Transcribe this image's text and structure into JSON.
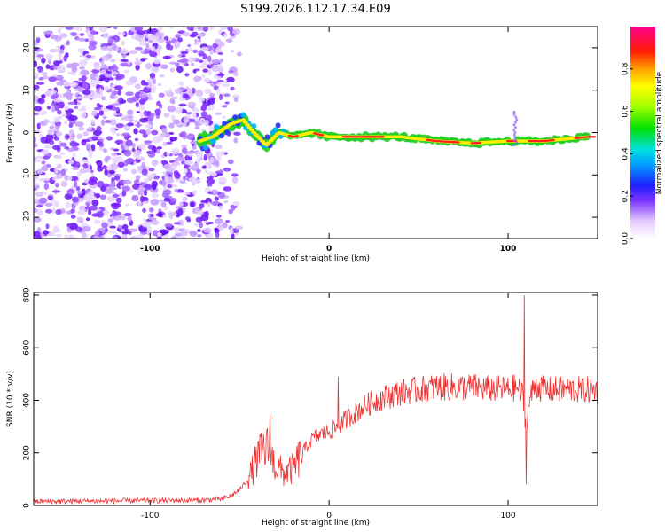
{
  "title": "S199.2026.112.17.34.E09",
  "colors": {
    "snr_line": "#ee3333",
    "frame": "#000000"
  },
  "chart_data": [
    {
      "type": "heatmap",
      "name": "spectrogram",
      "xlabel": "Height of straight line (km)",
      "ylabel": "Frequency (Hz)",
      "xlim": [
        -165,
        150
      ],
      "ylim": [
        -25,
        25
      ],
      "x_ticks": [
        -100,
        0,
        100
      ],
      "x_tick_labels": [
        "-100",
        "0",
        "100"
      ],
      "y_ticks": [
        -20,
        -10,
        0,
        10,
        20
      ],
      "y_tick_labels": [
        "-20",
        "-10",
        "0",
        "10",
        "20"
      ],
      "colorbar": {
        "label": "Normalized spectral amplitude",
        "range": [
          0,
          1
        ],
        "ticks": [
          0.0,
          0.2,
          0.4,
          0.6,
          0.8
        ],
        "tick_labels": [
          "0.0",
          "0.2",
          "0.4",
          "0.6",
          "0.8"
        ]
      },
      "ridge": {
        "description_points_x": [
          -72,
          -65,
          -55,
          -48,
          -42,
          -35,
          -28,
          -20,
          -10,
          0,
          10,
          20,
          40,
          60,
          80,
          100,
          120,
          145
        ],
        "frequency_hz": [
          -2,
          -1,
          2,
          3,
          0,
          -3,
          0,
          -1,
          0,
          -1,
          -1,
          -1,
          -1,
          -2,
          -2.5,
          -2,
          -2,
          -1
        ],
        "noise_region_x": [
          -165,
          -60
        ]
      }
    },
    {
      "type": "line",
      "name": "snr",
      "xlabel": "Height of straight line (km)",
      "ylabel": "SNR (10 * v/v)",
      "xlim": [
        -165,
        150
      ],
      "ylim": [
        0,
        810
      ],
      "x_ticks": [
        -100,
        0,
        100
      ],
      "x_tick_labels": [
        "-100",
        "0",
        "100"
      ],
      "y_ticks": [
        0,
        200,
        400,
        600,
        800
      ],
      "y_tick_labels": [
        "0",
        "200",
        "400",
        "600",
        "800"
      ],
      "envelope": {
        "x": [
          -165,
          -70,
          -60,
          -55,
          -50,
          -45,
          -40,
          -35,
          -30,
          -25,
          -20,
          -15,
          -10,
          -5,
          0,
          5,
          10,
          20,
          30,
          40,
          50,
          60,
          70,
          80,
          90,
          100,
          105,
          108,
          110,
          112,
          115,
          120,
          130,
          140,
          150
        ],
        "y": [
          15,
          20,
          25,
          35,
          60,
          100,
          180,
          220,
          150,
          120,
          140,
          200,
          250,
          270,
          280,
          300,
          330,
          380,
          410,
          430,
          440,
          450,
          450,
          450,
          445,
          440,
          450,
          420,
          300,
          400,
          460,
          440,
          440,
          440,
          440
        ]
      },
      "spikes": [
        {
          "x": -33,
          "y": 345
        },
        {
          "x": 5,
          "y": 490
        },
        {
          "x": 109,
          "y": 800
        },
        {
          "x": 110,
          "y": 80
        }
      ]
    }
  ]
}
